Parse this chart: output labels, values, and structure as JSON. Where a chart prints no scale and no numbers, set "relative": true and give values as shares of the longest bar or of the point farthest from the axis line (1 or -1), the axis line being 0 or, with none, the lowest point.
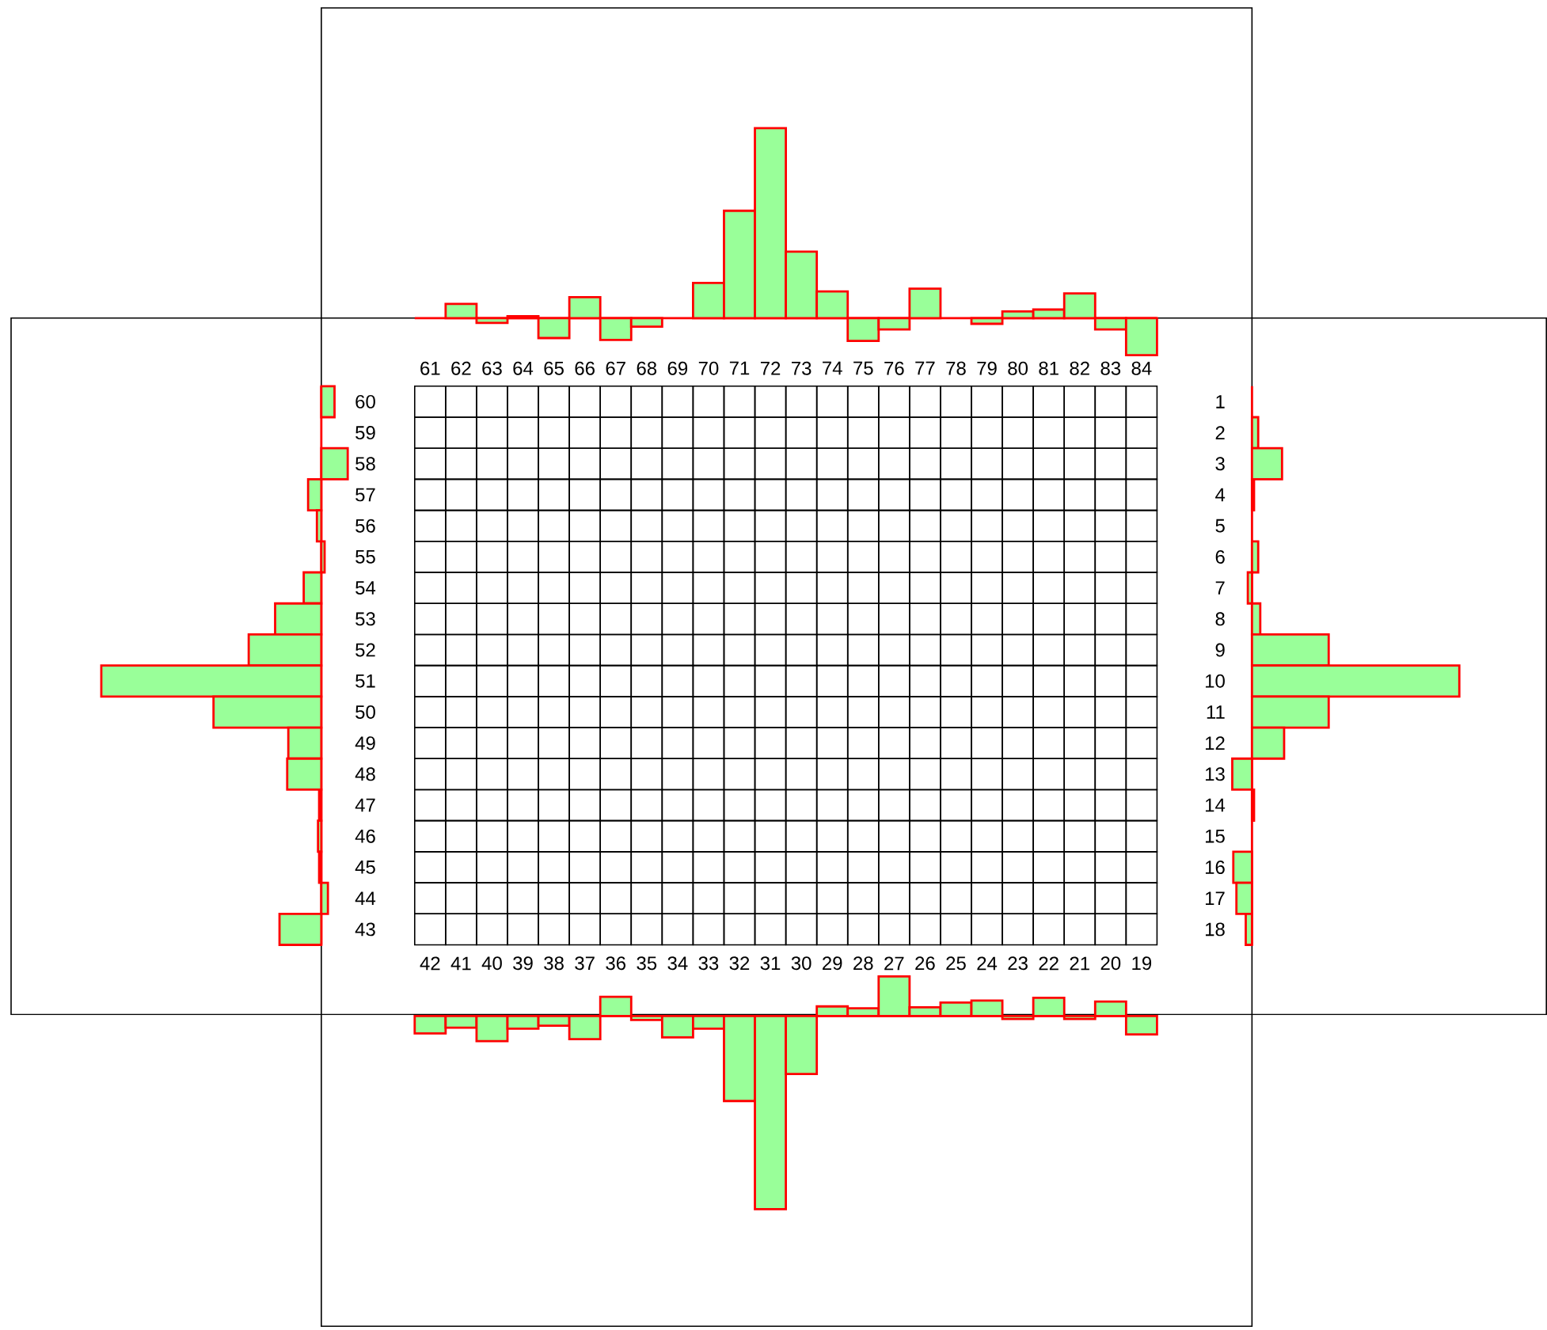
{
  "chart_data": [
    {
      "type": "bar",
      "relative": true,
      "color": "#99ff99",
      "categories": [
        "61",
        "62",
        "63",
        "64",
        "65",
        "66",
        "67",
        "68",
        "69",
        "70",
        "71",
        "72",
        "73",
        "74",
        "75",
        "76",
        "77",
        "78",
        "79",
        "80",
        "81",
        "82",
        "83",
        "84"
      ],
      "values": [
        0,
        0.075,
        -0.025,
        0.01,
        -0.105,
        0.11,
        -0.115,
        -0.045,
        0,
        0.185,
        0.565,
        1,
        0.35,
        0.14,
        -0.12,
        -0.06,
        0.155,
        0,
        -0.03,
        0.035,
        0.045,
        0.13,
        -0.06,
        -0.195
      ]
    },
    {
      "type": "bar",
      "relative": true,
      "orientation": "horizontal",
      "color": "#99ff99",
      "categories": [
        "60",
        "59",
        "58",
        "57",
        "56",
        "55",
        "54",
        "53",
        "52",
        "51",
        "50",
        "49",
        "48",
        "47",
        "46",
        "45",
        "44",
        "43"
      ],
      "values": [
        0.06,
        0,
        0.12,
        -0.06,
        -0.02,
        0.015,
        -0.08,
        -0.21,
        -0.33,
        -1,
        -0.49,
        -0.15,
        -0.155,
        -0.01,
        -0.015,
        -0.01,
        0.03,
        -0.19
      ]
    },
    {
      "type": "bar",
      "relative": true,
      "orientation": "horizontal",
      "color": "#99ff99",
      "categories": [
        "1",
        "2",
        "3",
        "4",
        "5",
        "6",
        "7",
        "8",
        "9",
        "10",
        "11",
        "12",
        "13",
        "14",
        "15",
        "16",
        "17",
        "18"
      ],
      "values": [
        0,
        0.03,
        0.145,
        0.01,
        0,
        0.03,
        -0.02,
        0.04,
        0.37,
        1,
        0.37,
        0.155,
        -0.095,
        0.01,
        0,
        -0.09,
        -0.075,
        -0.03
      ]
    },
    {
      "type": "bar",
      "relative": true,
      "color": "#99ff99",
      "categories": [
        "42",
        "41",
        "40",
        "39",
        "38",
        "37",
        "36",
        "35",
        "34",
        "33",
        "32",
        "31",
        "30",
        "29",
        "28",
        "27",
        "26",
        "25",
        "24",
        "23",
        "22",
        "21",
        "20",
        "19"
      ],
      "values": [
        -0.09,
        -0.06,
        -0.13,
        -0.065,
        -0.05,
        -0.12,
        0.1,
        -0.02,
        -0.11,
        -0.065,
        -0.44,
        -1,
        -0.3,
        0.05,
        0.04,
        0.205,
        0.045,
        0.07,
        0.08,
        -0.015,
        0.095,
        -0.015,
        0.075,
        -0.095
      ]
    }
  ]
}
